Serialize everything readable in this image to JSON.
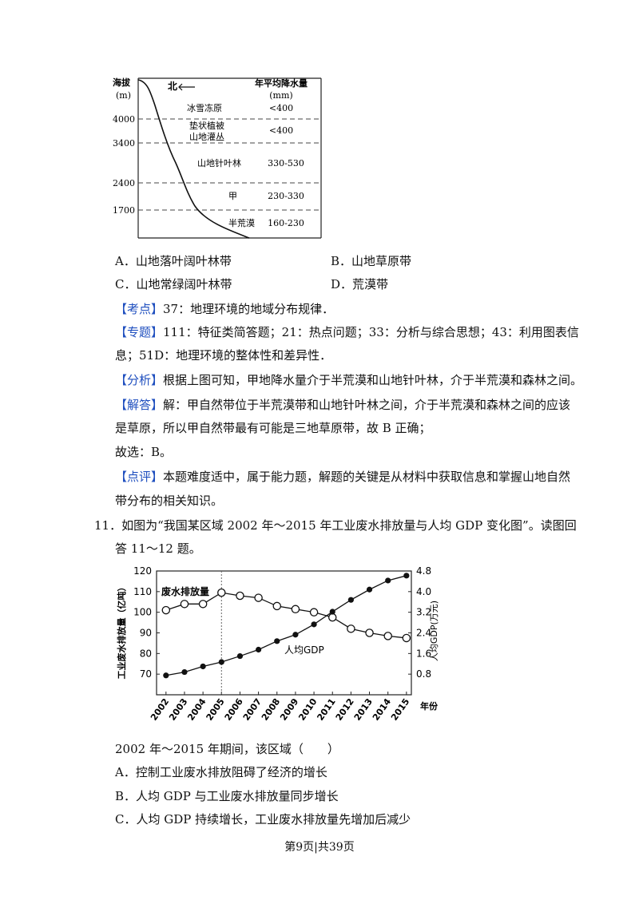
{
  "fig1": {
    "y_title": [
      "海拔",
      "(m)"
    ],
    "north": "北",
    "precip_title": [
      "年平均降水量",
      "(mm)"
    ],
    "alt_ticks": [
      "4000",
      "3400",
      "2400",
      "1700"
    ],
    "zones": [
      {
        "name": "冰雪冻原",
        "precip": "<400"
      },
      {
        "name": [
          "垫状植被",
          "山地灌丛"
        ],
        "precip": "<400"
      },
      {
        "name": "山地针叶林",
        "precip": "330-530"
      },
      {
        "name": "甲",
        "precip": "230-330"
      },
      {
        "name": "半荒漠",
        "precip": "160-230"
      }
    ]
  },
  "q10": {
    "options": [
      "A．山地落叶阔叶林带",
      "B．山地草原带",
      "C．山地常绿阔叶林带",
      "D．荒漠带"
    ],
    "kaodian_tag": "【考点】",
    "kaodian": "37：地理环境的地域分布规律．",
    "zhuanti_tag": "【专题】",
    "zhuanti_1": "111：特征类简答题；21：热点问题；33：分析与综合思想；43：利用图表信",
    "zhuanti_2": "息；51D：地理环境的整体性和差异性．",
    "fenxi_tag": "【分析】",
    "fenxi": "根据上图可知，甲地降水量介于半荒漠和山地针叶林，介于半荒漠和森林之间。",
    "jieda_tag": "【解答】",
    "jieda_1": "解：甲自然带位于半荒漠带和山地针叶林之间，介于半荒漠和森林之间的应该",
    "jieda_2": "是草原，所以甲自然带最有可能是三地草原带，故 B 正确；",
    "answer": "故选：B。",
    "dianping_tag": "【点评】",
    "dianping_1": "本题难度适中，属于能力题，解题的关键是从材料中获取信息和掌握山地自然",
    "dianping_2": "带分布的相关知识。"
  },
  "q11": {
    "stem_1": "11．如图为“我国某区域 2002 年～2015 年工业废水排放量与人均 GDP 变化图”。读图回",
    "stem_2": "答 11～12 题。",
    "question": "2002 年～2015 年期间，该区域（　　）",
    "options": [
      "A．控制工业废水排放阻碍了经济的增长",
      "B．人均 GDP 与工业废水排放量同步增长",
      "C．人均 GDP 持续增长，工业废水排放量先增加后减少"
    ]
  },
  "chart_data": {
    "type": "line",
    "x": [
      2002,
      2003,
      2004,
      2005,
      2006,
      2007,
      2008,
      2009,
      2010,
      2011,
      2012,
      2013,
      2014,
      2015
    ],
    "x_unit": "年份",
    "y_left_label": "工业废水排放量（亿吨）",
    "y_right_label": "人均GDP(万元)",
    "y_left_lim": [
      60,
      120
    ],
    "y_left_ticks": [
      "70",
      "80",
      "90",
      "100",
      "110",
      "120"
    ],
    "y_right_lim": [
      0,
      4.8
    ],
    "y_right_ticks": [
      "0.8",
      "1.6",
      "2.4",
      "3.2",
      "4.0",
      "4.8"
    ],
    "series": [
      {
        "name": "废水排放量",
        "axis": "left",
        "marker": "open-circle",
        "values": [
          101,
          104,
          104,
          109.5,
          108,
          107,
          103,
          101.5,
          100,
          97.5,
          92,
          90,
          88.5,
          87.5
        ]
      },
      {
        "name": "人均GDP",
        "axis": "right",
        "marker": "filled-circle",
        "values": [
          0.75,
          0.88,
          1.1,
          1.27,
          1.5,
          1.75,
          2.08,
          2.33,
          2.73,
          3.22,
          3.68,
          4.08,
          4.43,
          4.62
        ]
      }
    ],
    "grid": false
  },
  "page_footer": "第9页|共39页"
}
